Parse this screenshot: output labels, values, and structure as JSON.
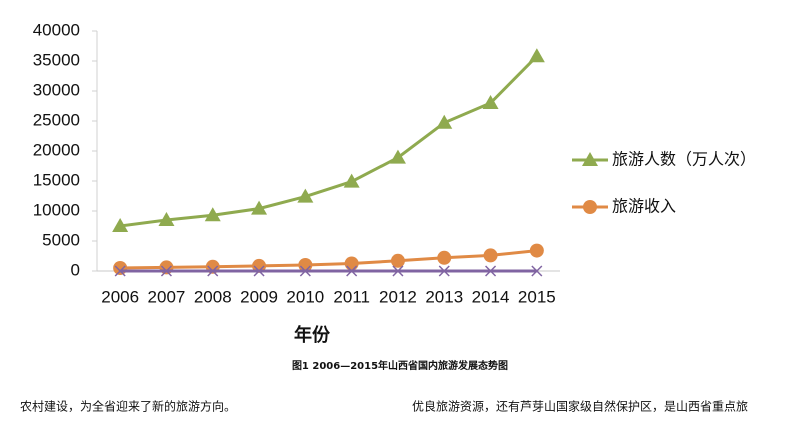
{
  "chart_data": {
    "type": "line",
    "categories": [
      "2006",
      "2007",
      "2008",
      "2009",
      "2010",
      "2011",
      "2012",
      "2013",
      "2014",
      "2015"
    ],
    "x_label": "年份",
    "series": [
      {
        "name": "旅游人数（万人次）",
        "color": "#8faa4f",
        "marker": "triangle",
        "values": [
          7500,
          8500,
          9300,
          10400,
          12400,
          14900,
          18900,
          24700,
          28000,
          35800
        ]
      },
      {
        "name": "旅游收入",
        "color": "#e08a45",
        "marker": "circle",
        "values": [
          500,
          600,
          700,
          850,
          1000,
          1250,
          1700,
          2200,
          2600,
          3400
        ]
      },
      {
        "color": "#8064a2",
        "marker": "x",
        "values": [
          0,
          0,
          0,
          0,
          0,
          0,
          0,
          0,
          0,
          0
        ]
      }
    ],
    "ylim": [
      0,
      40000
    ],
    "yticks": [
      0,
      5000,
      10000,
      15000,
      20000,
      25000,
      30000,
      35000,
      40000
    ],
    "legend": "right"
  },
  "caption": "图1 2006—2015年山西省国内旅游发展态势图",
  "body_left": "农村建设，为全省迎来了新的旅游方向。",
  "body_right": "优良旅游资源，还有芦芽山国家级自然保护区，是山西省重点旅"
}
